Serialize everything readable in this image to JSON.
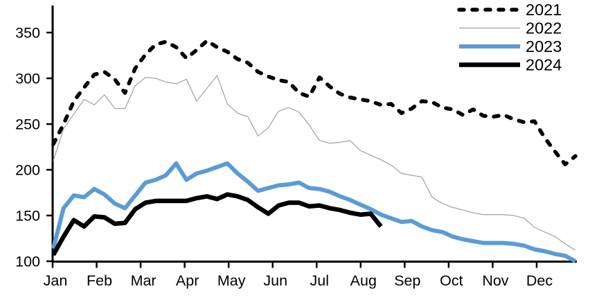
{
  "chart_data": {
    "type": "line",
    "title": "",
    "xlabel": "",
    "ylabel": "",
    "x_unit": "week",
    "grid": false,
    "legend_position": "top-right",
    "background": "#ffffff",
    "axis_color": "#000000",
    "ylim": [
      100,
      350
    ],
    "y_axis_ticks": [
      100,
      150,
      200,
      250,
      300,
      350
    ],
    "x_axis_months": [
      "Jan",
      "Feb",
      "Mar",
      "Apr",
      "May",
      "Jun",
      "Jul",
      "Aug",
      "Sep",
      "Oct",
      "Nov",
      "Dec"
    ],
    "weeks_per_year": 52,
    "series": [
      {
        "name": "2021",
        "color": "#000000",
        "line_style": "dashed",
        "line_width": 5.5,
        "values": [
          228,
          250,
          275,
          290,
          304,
          307,
          299,
          284,
          311,
          326,
          337,
          340,
          334,
          322,
          331,
          341,
          334,
          329,
          321,
          317,
          307,
          302,
          298,
          296,
          284,
          280,
          301,
          291,
          283,
          279,
          277,
          275,
          271,
          272,
          262,
          267,
          275,
          274,
          268,
          266,
          260,
          266,
          259,
          258,
          260,
          255,
          252,
          253,
          235,
          220,
          206,
          215
        ]
      },
      {
        "name": "2022",
        "color": "#a6a6a6",
        "line_style": "solid",
        "line_width": 1.3,
        "values": [
          210,
          245,
          261,
          277,
          271,
          282,
          267,
          267,
          292,
          301,
          300,
          296,
          294,
          299,
          275,
          289,
          303,
          272,
          262,
          258,
          237,
          246,
          264,
          268,
          263,
          249,
          232,
          229,
          230,
          232,
          221,
          216,
          211,
          205,
          196,
          194,
          192,
          170,
          163,
          159,
          156,
          153,
          151,
          151,
          151,
          150,
          147,
          137,
          132,
          127,
          119,
          112
        ]
      },
      {
        "name": "2023",
        "color": "#5b9bd5",
        "line_style": "solid",
        "line_width": 6,
        "values": [
          114,
          158,
          172,
          170,
          179,
          173,
          163,
          158,
          172,
          186,
          189,
          194,
          207,
          189,
          196,
          199,
          203,
          207,
          196,
          187,
          177,
          180,
          183,
          184,
          186,
          180,
          179,
          176,
          171,
          167,
          162,
          157,
          151,
          147,
          143,
          144,
          138,
          134,
          132,
          127,
          124,
          122,
          120,
          120,
          120,
          119,
          117,
          113,
          111,
          108,
          106,
          100
        ]
      },
      {
        "name": "2024",
        "color": "#000000",
        "line_style": "solid",
        "line_width": 6.5,
        "values": [
          107,
          127,
          145,
          138,
          149,
          148,
          141,
          142,
          157,
          164,
          166,
          166,
          166,
          166,
          169,
          171,
          168,
          173,
          171,
          167,
          159,
          152,
          161,
          164,
          164,
          160,
          161,
          158,
          156,
          153,
          151,
          152,
          138
        ]
      }
    ]
  }
}
